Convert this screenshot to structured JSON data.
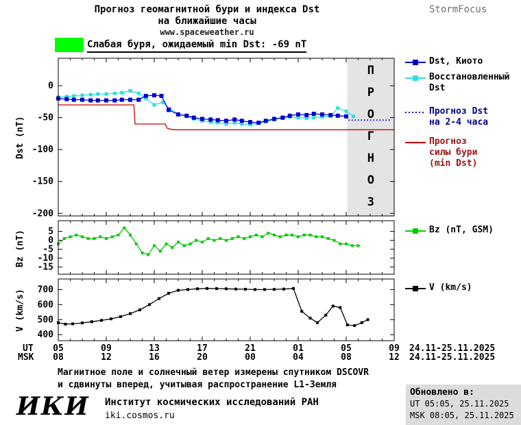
{
  "header": {
    "title_line1": "Прогноз геомагнитной бури и индекса Dst",
    "title_line2": "на ближайшие часы",
    "site": "www.spaceweather.ru",
    "brand": "StormFocus"
  },
  "alert": {
    "text": "Слабая буря, ожидаемый min Dst: -69 nT",
    "level_color": "#00ff00"
  },
  "xaxis": {
    "ut_prefix": "UT",
    "msk_prefix": "MSK",
    "ut_labels": [
      "05",
      "09",
      "13",
      "17",
      "21",
      "01",
      "05",
      "09"
    ],
    "msk_labels": [
      "08",
      "12",
      "16",
      "20",
      "00",
      "04",
      "08",
      "12"
    ],
    "date_label": "24.11-25.11.2025"
  },
  "legends": [
    {
      "label": "Dst, Киото",
      "swatch": "square-line",
      "color": "#0000cc",
      "text_color": "#000000",
      "icon": "dst-kyoto-swatch"
    },
    {
      "label": "Восстановленный\nDst",
      "swatch": "square-line",
      "color": "#2fdede",
      "text_color": "#000000",
      "icon": "restored-dst-swatch"
    },
    {
      "label": "Прогноз Dst\nна 2-4 часа",
      "swatch": "dotted",
      "color": "#0000cc",
      "text_color": "#00008b",
      "icon": "forecast-dst-swatch"
    },
    {
      "label": "Прогноз\nсилы бури\n(min Dst)",
      "swatch": "line",
      "color": "#cc0000",
      "text_color": "#991111",
      "icon": "storm-strength-swatch"
    },
    {
      "label": "Bz (nT, GSM)",
      "swatch": "square-line",
      "color": "#00cc00",
      "text_color": "#000000",
      "icon": "bz-swatch"
    },
    {
      "label": "V (km/s)",
      "swatch": "square-line",
      "color": "#000000",
      "text_color": "#000000",
      "icon": "v-swatch"
    }
  ],
  "chart_data": [
    {
      "type": "line",
      "panel": "dst",
      "ylabel": "Dst (nT)",
      "ylim": [
        -204,
        43
      ],
      "yticks": [
        0,
        -50,
        -100,
        -150,
        -200
      ],
      "ytick_labels": [
        "0",
        "-50",
        "-100",
        "-150",
        "-200"
      ],
      "xlim": [
        5,
        33
      ],
      "xticks": [
        5,
        9,
        13,
        17,
        21,
        25,
        29,
        33
      ],
      "forecast_band": {
        "start": 29.1,
        "end": 33,
        "label": "ПРОГНОЗ",
        "fill": "#e4e4e4",
        "text_color": "#c9a6a6"
      },
      "series": [
        {
          "name": "Прогноз силы бури (min Dst)",
          "color": "#cc0000",
          "style": "solid",
          "marker": "none",
          "points": [
            [
              5,
              -30
            ],
            [
              11.3,
              -30
            ],
            [
              11.4,
              -60
            ],
            [
              13.9,
              -60
            ],
            [
              14.1,
              -67
            ],
            [
              14.6,
              -69
            ],
            [
              33,
              -69
            ]
          ]
        },
        {
          "name": "Восстановленный Dst",
          "color": "#2fdede",
          "style": "solid",
          "marker": "square",
          "marker_size": 5,
          "points": [
            [
              5,
              -18
            ],
            [
              5.7,
              -17
            ],
            [
              6.3,
              -16
            ],
            [
              7,
              -15
            ],
            [
              7.7,
              -14
            ],
            [
              8.3,
              -13
            ],
            [
              9,
              -13
            ],
            [
              9.7,
              -12
            ],
            [
              10.3,
              -11
            ],
            [
              11,
              -8
            ],
            [
              11.7,
              -12
            ],
            [
              12.3,
              -20
            ],
            [
              13,
              -30
            ],
            [
              13.7,
              -26
            ],
            [
              14.3,
              -36
            ],
            [
              15,
              -45
            ],
            [
              15.7,
              -48
            ],
            [
              16.3,
              -52
            ],
            [
              17,
              -55
            ],
            [
              17.7,
              -57
            ],
            [
              18.3,
              -58
            ],
            [
              19,
              -60
            ],
            [
              19.7,
              -58
            ],
            [
              20.3,
              -60
            ],
            [
              21,
              -61
            ],
            [
              21.7,
              -59
            ],
            [
              22.3,
              -56
            ],
            [
              23,
              -53
            ],
            [
              23.7,
              -51
            ],
            [
              24.3,
              -49
            ],
            [
              25,
              -50
            ],
            [
              25.7,
              -51
            ],
            [
              26.3,
              -50
            ],
            [
              27,
              -49
            ],
            [
              27.7,
              -48
            ],
            [
              28.3,
              -35
            ],
            [
              29,
              -40
            ],
            [
              29.6,
              -48
            ]
          ]
        },
        {
          "name": "Dst, Киото",
          "color": "#0000cc",
          "style": "solid",
          "marker": "square",
          "marker_size": 6,
          "points": [
            [
              5,
              -20
            ],
            [
              5.7,
              -21
            ],
            [
              6.3,
              -22
            ],
            [
              7,
              -22
            ],
            [
              7.7,
              -23
            ],
            [
              8.3,
              -23
            ],
            [
              9,
              -23
            ],
            [
              9.7,
              -23
            ],
            [
              10.3,
              -22
            ],
            [
              11,
              -22
            ],
            [
              11.7,
              -22
            ],
            [
              12.3,
              -16
            ],
            [
              13,
              -15
            ],
            [
              13.6,
              -16
            ],
            [
              14.2,
              -38
            ],
            [
              15,
              -45
            ],
            [
              15.7,
              -47
            ],
            [
              16.3,
              -50
            ],
            [
              17,
              -52
            ],
            [
              17.7,
              -53
            ],
            [
              18.3,
              -54
            ],
            [
              19,
              -55
            ],
            [
              19.7,
              -53
            ],
            [
              20.3,
              -55
            ],
            [
              21,
              -57
            ],
            [
              21.7,
              -58
            ],
            [
              22.3,
              -55
            ],
            [
              23,
              -52
            ],
            [
              23.7,
              -50
            ],
            [
              24.3,
              -47
            ],
            [
              25,
              -45
            ],
            [
              25.7,
              -46
            ],
            [
              26.3,
              -44
            ],
            [
              27,
              -45
            ],
            [
              27.7,
              -46
            ],
            [
              28.3,
              -47
            ],
            [
              29,
              -48
            ]
          ]
        },
        {
          "name": "Прогноз Dst на 2-4 часа",
          "color": "#0000cc",
          "style": "dotted",
          "marker": "none",
          "points": [
            [
              29.2,
              -54
            ],
            [
              32.8,
              -54
            ]
          ]
        }
      ]
    },
    {
      "type": "line",
      "panel": "bz",
      "ylabel": "Bz (nT)",
      "ylim": [
        -19,
        11
      ],
      "yticks": [
        5,
        0,
        -5,
        -10,
        -15
      ],
      "ytick_labels": [
        "5",
        "0",
        "-5",
        "-10",
        "-15"
      ],
      "xlim": [
        5,
        33
      ],
      "xticks": [
        5,
        9,
        13,
        17,
        21,
        25,
        29,
        33
      ],
      "series": [
        {
          "name": "Bz (nT, GSM)",
          "color": "#00cc00",
          "style": "solid",
          "marker": "square",
          "marker_size": 4,
          "points": [
            [
              5,
              -2
            ],
            [
              5.5,
              1
            ],
            [
              6,
              2
            ],
            [
              6.5,
              3
            ],
            [
              7,
              2
            ],
            [
              7.5,
              1
            ],
            [
              8,
              1
            ],
            [
              8.5,
              2
            ],
            [
              9,
              1
            ],
            [
              9.5,
              2
            ],
            [
              10,
              3
            ],
            [
              10.5,
              7
            ],
            [
              11,
              3
            ],
            [
              11.5,
              -2
            ],
            [
              12,
              -7
            ],
            [
              12.5,
              -8
            ],
            [
              13,
              -3
            ],
            [
              13.5,
              -6
            ],
            [
              14,
              -2
            ],
            [
              14.5,
              -4
            ],
            [
              15,
              -1
            ],
            [
              15.5,
              -3
            ],
            [
              16,
              -2
            ],
            [
              16.5,
              0
            ],
            [
              17,
              -1
            ],
            [
              17.5,
              1
            ],
            [
              18,
              0
            ],
            [
              18.5,
              1
            ],
            [
              19,
              0
            ],
            [
              19.5,
              1
            ],
            [
              20,
              2
            ],
            [
              20.5,
              1
            ],
            [
              21,
              2
            ],
            [
              21.5,
              3
            ],
            [
              22,
              2
            ],
            [
              22.5,
              4
            ],
            [
              23,
              3
            ],
            [
              23.5,
              2
            ],
            [
              24,
              3
            ],
            [
              24.5,
              3
            ],
            [
              25,
              2
            ],
            [
              25.5,
              3
            ],
            [
              26,
              3
            ],
            [
              26.5,
              2
            ],
            [
              27,
              2
            ],
            [
              27.5,
              1
            ],
            [
              28,
              0
            ],
            [
              28.5,
              -2
            ],
            [
              29,
              -2
            ],
            [
              29.5,
              -3
            ],
            [
              30,
              -3
            ]
          ]
        }
      ]
    },
    {
      "type": "line",
      "panel": "v",
      "ylabel": "V (km/s)",
      "ylim": [
        360,
        770
      ],
      "yticks": [
        700,
        600,
        500,
        400
      ],
      "ytick_labels": [
        "700",
        "600",
        "500",
        "400"
      ],
      "xlim": [
        5,
        33
      ],
      "xticks": [
        5,
        9,
        13,
        17,
        21,
        25,
        29,
        33
      ],
      "series": [
        {
          "name": "V (km/s)",
          "color": "#000000",
          "style": "solid",
          "marker": "square",
          "marker_size": 4,
          "points": [
            [
              5,
              480
            ],
            [
              5.6,
              470
            ],
            [
              6.2,
              472
            ],
            [
              7,
              478
            ],
            [
              7.8,
              486
            ],
            [
              8.6,
              495
            ],
            [
              9.4,
              505
            ],
            [
              10.2,
              520
            ],
            [
              11,
              540
            ],
            [
              11.8,
              565
            ],
            [
              12.6,
              600
            ],
            [
              13.4,
              640
            ],
            [
              14.2,
              675
            ],
            [
              15,
              695
            ],
            [
              15.8,
              700
            ],
            [
              16.6,
              705
            ],
            [
              17.4,
              707
            ],
            [
              18.2,
              706
            ],
            [
              19,
              705
            ],
            [
              19.8,
              703
            ],
            [
              20.6,
              702
            ],
            [
              21.4,
              700
            ],
            [
              22.2,
              700
            ],
            [
              23,
              701
            ],
            [
              23.8,
              703
            ],
            [
              24.6,
              707
            ],
            [
              25.3,
              555
            ],
            [
              26,
              510
            ],
            [
              26.6,
              480
            ],
            [
              27.3,
              530
            ],
            [
              27.9,
              590
            ],
            [
              28.5,
              580
            ],
            [
              29.1,
              465
            ],
            [
              29.7,
              460
            ],
            [
              30.3,
              480
            ],
            [
              30.8,
              500
            ]
          ]
        }
      ]
    }
  ],
  "footer": {
    "note_line1": "Магнитное поле и солнечный ветер измерены спутником DSCOVR",
    "note_line2": "и сдвинуты вперед, учитывая распространение L1-Земля",
    "logo": "ИКИ",
    "institute": "Институт космических исследований РАН",
    "institute_url": "iki.cosmos.ru",
    "updated_title": "Обновлено в:",
    "updated_ut": "UT  05:05, 25.11.2025",
    "updated_msk": "MSK 08:05, 25.11.2025"
  }
}
